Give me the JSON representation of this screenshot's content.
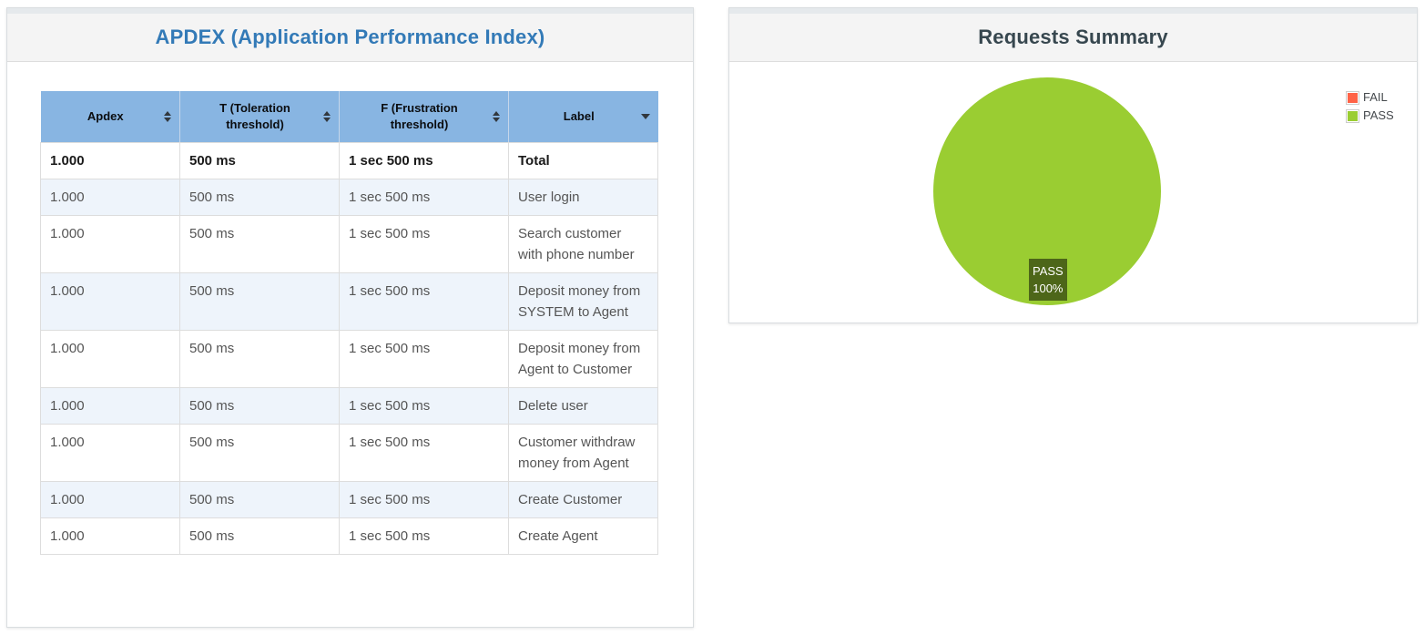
{
  "apdex_panel": {
    "title": "APDEX (Application Performance Index)",
    "table": {
      "columns": [
        {
          "label": "Apdex",
          "sort": "both"
        },
        {
          "label": "T (Toleration threshold)",
          "sort": "both"
        },
        {
          "label": "F (Frustration threshold)",
          "sort": "both"
        },
        {
          "label": "Label",
          "sort": "desc"
        }
      ],
      "rows": [
        {
          "apdex": "1.000",
          "toleration": "500 ms",
          "frustration": "1 sec 500 ms",
          "label": "Total",
          "emphasis": true
        },
        {
          "apdex": "1.000",
          "toleration": "500 ms",
          "frustration": "1 sec 500 ms",
          "label": "User login",
          "emphasis": false
        },
        {
          "apdex": "1.000",
          "toleration": "500 ms",
          "frustration": "1 sec 500 ms",
          "label": "Search customer with phone number",
          "emphasis": false
        },
        {
          "apdex": "1.000",
          "toleration": "500 ms",
          "frustration": "1 sec 500 ms",
          "label": "Deposit money from SYSTEM to Agent",
          "emphasis": false
        },
        {
          "apdex": "1.000",
          "toleration": "500 ms",
          "frustration": "1 sec 500 ms",
          "label": "Deposit money from Agent to Customer",
          "emphasis": false
        },
        {
          "apdex": "1.000",
          "toleration": "500 ms",
          "frustration": "1 sec 500 ms",
          "label": "Delete user",
          "emphasis": false
        },
        {
          "apdex": "1.000",
          "toleration": "500 ms",
          "frustration": "1 sec 500 ms",
          "label": "Customer withdraw money from Agent",
          "emphasis": false
        },
        {
          "apdex": "1.000",
          "toleration": "500 ms",
          "frustration": "1 sec 500 ms",
          "label": "Create Customer",
          "emphasis": false
        },
        {
          "apdex": "1.000",
          "toleration": "500 ms",
          "frustration": "1 sec 500 ms",
          "label": "Create Agent",
          "emphasis": false
        }
      ]
    }
  },
  "summary_panel": {
    "title": "Requests Summary",
    "legend": [
      {
        "label": "FAIL",
        "color": "#FF6347"
      },
      {
        "label": "PASS",
        "color": "#9ACD32"
      }
    ],
    "pie_label_line1": "PASS",
    "pie_label_line2": "100%"
  },
  "colors": {
    "pass": "#9ACD32",
    "fail": "#FF6347",
    "header_bg": "#88b5e2",
    "stripe_bg": "#eef4fb",
    "title_blue": "#337ab7",
    "title_dark": "#37474f",
    "pie_label_bg": "#4d6619"
  },
  "chart_data": {
    "type": "pie",
    "title": "Requests Summary",
    "categories": [
      "FAIL",
      "PASS"
    ],
    "values": [
      0,
      100
    ],
    "unit": "percent",
    "colors": [
      "#FF6347",
      "#9ACD32"
    ],
    "legend_position": "top-right",
    "annotations": [
      "PASS 100%"
    ]
  }
}
